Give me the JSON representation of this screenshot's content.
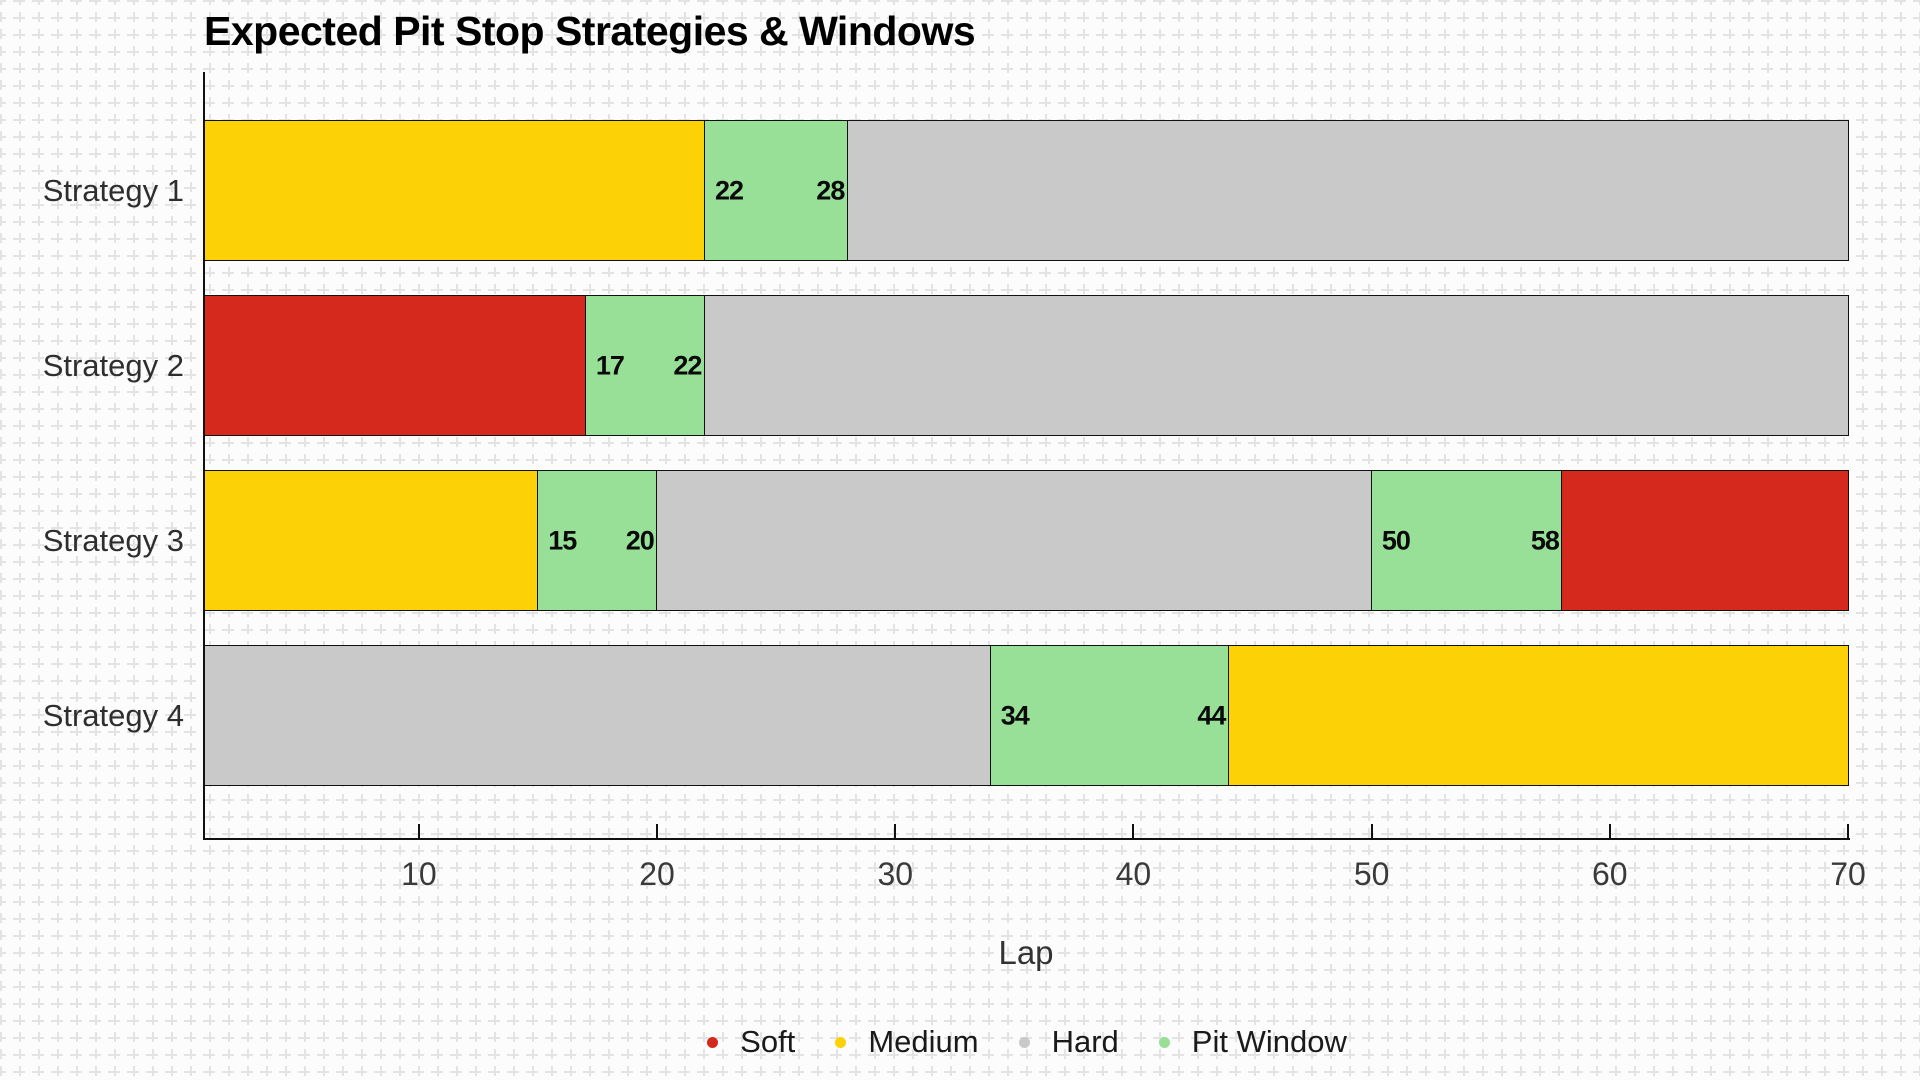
{
  "page": {
    "background_color": "#fcfcfc",
    "grid_pattern": "dashed-cross-graph-paper",
    "grid_color": "#e3e3e3"
  },
  "chart_data": {
    "type": "bar",
    "subtype": "horizontal-stacked-timeline",
    "title": "Expected Pit Stop Strategies & Windows",
    "xlabel": "Lap",
    "xlim": [
      1,
      70
    ],
    "xticks": [
      "10",
      "20",
      "30",
      "40",
      "50",
      "60",
      "70"
    ],
    "tick_direction": "in",
    "grid": false,
    "categories": [
      "Strategy 1",
      "Strategy 2",
      "Strategy 3",
      "Strategy 4"
    ],
    "colors": {
      "Soft": "#d6291d",
      "Medium": "#fcd106",
      "Hard": "#c9c9c9",
      "Pit Window": "#98df98"
    },
    "edge_color": "#111111",
    "strategies": [
      {
        "name": "Strategy 1",
        "segments": [
          {
            "compound": "Medium",
            "from": 1,
            "to": 22
          },
          {
            "compound": "Pit Window",
            "from": 22,
            "to": 28,
            "labels": [
              "22",
              "28"
            ]
          },
          {
            "compound": "Hard",
            "from": 28,
            "to": 70
          }
        ]
      },
      {
        "name": "Strategy 2",
        "segments": [
          {
            "compound": "Soft",
            "from": 1,
            "to": 17
          },
          {
            "compound": "Pit Window",
            "from": 17,
            "to": 22,
            "labels": [
              "17",
              "22"
            ]
          },
          {
            "compound": "Hard",
            "from": 22,
            "to": 70
          }
        ]
      },
      {
        "name": "Strategy 3",
        "segments": [
          {
            "compound": "Medium",
            "from": 1,
            "to": 15
          },
          {
            "compound": "Pit Window",
            "from": 15,
            "to": 20,
            "labels": [
              "15",
              "20"
            ]
          },
          {
            "compound": "Hard",
            "from": 20,
            "to": 50
          },
          {
            "compound": "Pit Window",
            "from": 50,
            "to": 58,
            "labels": [
              "50",
              "58"
            ]
          },
          {
            "compound": "Soft",
            "from": 58,
            "to": 70
          }
        ]
      },
      {
        "name": "Strategy 4",
        "segments": [
          {
            "compound": "Hard",
            "from": 1,
            "to": 34
          },
          {
            "compound": "Pit Window",
            "from": 34,
            "to": 44,
            "labels": [
              "34",
              "44"
            ]
          },
          {
            "compound": "Medium",
            "from": 44,
            "to": 70
          }
        ]
      }
    ],
    "legend": [
      {
        "label": "Soft",
        "color": "#d6291d"
      },
      {
        "label": "Medium",
        "color": "#fcd106"
      },
      {
        "label": "Hard",
        "color": "#c9c9c9"
      },
      {
        "label": "Pit Window",
        "color": "#98df98"
      }
    ],
    "legend_position": "bottom-center"
  }
}
